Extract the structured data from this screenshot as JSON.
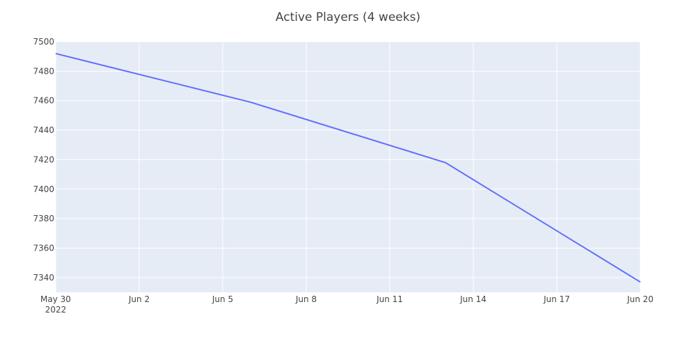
{
  "chart_data": {
    "type": "line",
    "title": "Active Players (4 weeks)",
    "xlabel": "",
    "ylabel": "",
    "x_type": "date",
    "xlim": [
      "2022-05-30",
      "2022-06-20"
    ],
    "ylim": [
      7330,
      7500
    ],
    "grid": true,
    "background_color": "#e5ecf6",
    "grid_color": "#ffffff",
    "line_color": "#636efa",
    "x_ticks": [
      {
        "value": "2022-05-30",
        "label": "May 30",
        "sublabel": "2022"
      },
      {
        "value": "2022-06-02",
        "label": "Jun 2"
      },
      {
        "value": "2022-06-05",
        "label": "Jun 5"
      },
      {
        "value": "2022-06-08",
        "label": "Jun 8"
      },
      {
        "value": "2022-06-11",
        "label": "Jun 11"
      },
      {
        "value": "2022-06-14",
        "label": "Jun 14"
      },
      {
        "value": "2022-06-17",
        "label": "Jun 17"
      },
      {
        "value": "2022-06-20",
        "label": "Jun 20"
      }
    ],
    "y_ticks": [
      7340,
      7360,
      7380,
      7400,
      7420,
      7440,
      7460,
      7480,
      7500
    ],
    "series": [
      {
        "x": [
          "2022-05-30",
          "2022-06-06",
          "2022-06-13",
          "2022-06-20"
        ],
        "y": [
          7492,
          7459,
          7418,
          7337
        ]
      }
    ]
  }
}
